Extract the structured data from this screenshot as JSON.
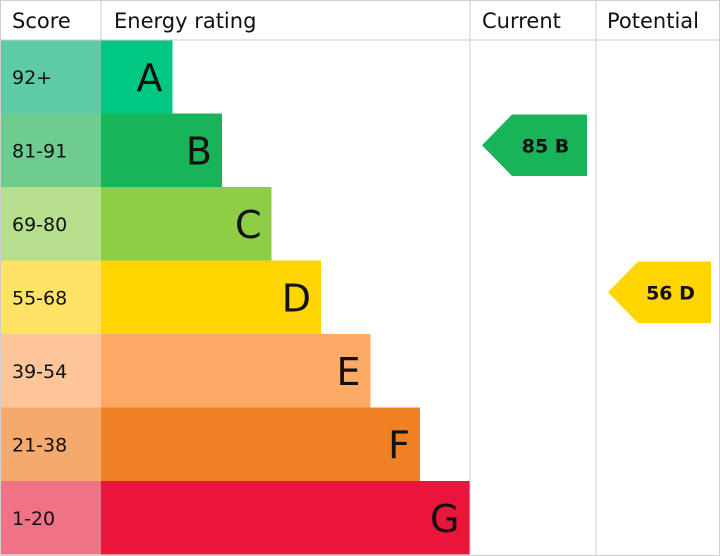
{
  "chart_data": {
    "type": "bar",
    "headers": {
      "score": "Score",
      "rating": "Energy rating",
      "current": "Current",
      "potential": "Potential"
    },
    "bands": [
      {
        "score": "92+",
        "letter": "A",
        "value": 1,
        "color": "#00c781",
        "score_bg": "#5ccba6"
      },
      {
        "score": "81-91",
        "letter": "B",
        "value": 2,
        "color": "#19b459",
        "score_bg": "#6fcc8f"
      },
      {
        "score": "69-80",
        "letter": "C",
        "value": 3,
        "color": "#8dce46",
        "score_bg": "#b5df8d"
      },
      {
        "score": "55-68",
        "letter": "D",
        "value": 4,
        "color": "#ffd500",
        "score_bg": "#ffe364"
      },
      {
        "score": "39-54",
        "letter": "E",
        "value": 5,
        "color": "#fcaa65",
        "score_bg": "#fdc59a"
      },
      {
        "score": "21-38",
        "letter": "F",
        "value": 6,
        "color": "#ef8023",
        "score_bg": "#f4aa6d"
      },
      {
        "score": "1-20",
        "letter": "G",
        "value": 7,
        "color": "#e9153b",
        "score_bg": "#f07287"
      }
    ],
    "current": {
      "label": "85 B",
      "band": "B",
      "color": "#19b459"
    },
    "potential": {
      "label": "56 D",
      "band": "D",
      "color": "#ffd500"
    }
  }
}
